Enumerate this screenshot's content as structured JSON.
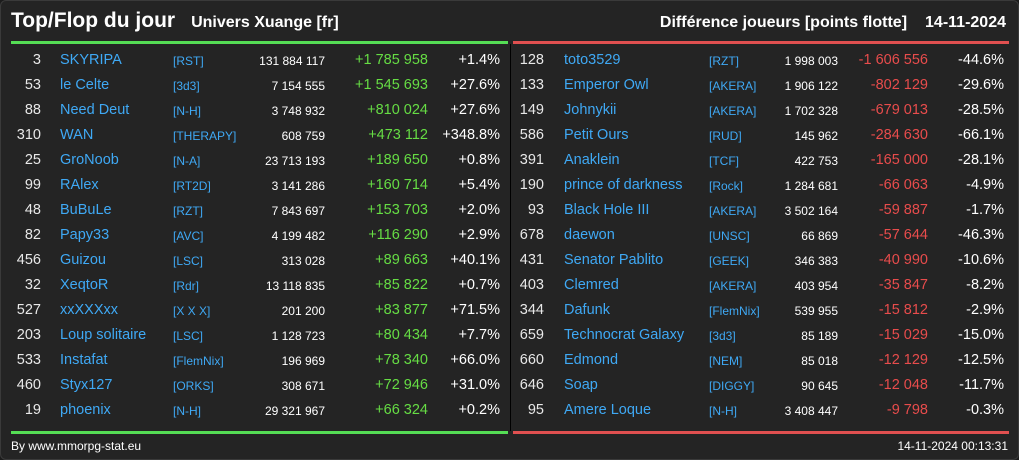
{
  "header": {
    "title": "Top/Flop du jour",
    "subtitle": "Univers Xuange [fr]",
    "metric": "Différence joueurs [points flotte]",
    "date": "14-11-2024"
  },
  "colors": {
    "top": "#55dd55",
    "flop": "#e05050",
    "name": "#3fa9f5"
  },
  "top": [
    {
      "rank": "3",
      "name": "SKYRIPA",
      "alliance": "[RST]",
      "points": "131 884 117",
      "diff": "+1 785 958",
      "pct": "+1.4%"
    },
    {
      "rank": "53",
      "name": "le Celte",
      "alliance": "[3d3]",
      "points": "7 154 555",
      "diff": "+1 545 693",
      "pct": "+27.6%"
    },
    {
      "rank": "88",
      "name": "Need Deut",
      "alliance": "[N-H]",
      "points": "3 748 932",
      "diff": "+810 024",
      "pct": "+27.6%"
    },
    {
      "rank": "310",
      "name": "WAN",
      "alliance": "[THERAPY]",
      "points": "608 759",
      "diff": "+473 112",
      "pct": "+348.8%"
    },
    {
      "rank": "25",
      "name": "GroNoob",
      "alliance": "[N-A]",
      "points": "23 713 193",
      "diff": "+189 650",
      "pct": "+0.8%"
    },
    {
      "rank": "99",
      "name": "RAlex",
      "alliance": "[RT2D]",
      "points": "3 141 286",
      "diff": "+160 714",
      "pct": "+5.4%"
    },
    {
      "rank": "48",
      "name": "BuBuLe",
      "alliance": "[RZT]",
      "points": "7 843 697",
      "diff": "+153 703",
      "pct": "+2.0%"
    },
    {
      "rank": "82",
      "name": "Papy33",
      "alliance": "[AVC]",
      "points": "4 199 482",
      "diff": "+116 290",
      "pct": "+2.9%"
    },
    {
      "rank": "456",
      "name": "Guizou",
      "alliance": "[LSC]",
      "points": "313 028",
      "diff": "+89 663",
      "pct": "+40.1%"
    },
    {
      "rank": "32",
      "name": "XeqtoR",
      "alliance": "[Rdr]",
      "points": "13 118 835",
      "diff": "+85 822",
      "pct": "+0.7%"
    },
    {
      "rank": "527",
      "name": "xxXXXxx",
      "alliance": "[X X X]",
      "points": "201 200",
      "diff": "+83 877",
      "pct": "+71.5%"
    },
    {
      "rank": "203",
      "name": "Loup solitaire",
      "alliance": "[LSC]",
      "points": "1 128 723",
      "diff": "+80 434",
      "pct": "+7.7%"
    },
    {
      "rank": "533",
      "name": "Instafat",
      "alliance": "[FlemNix]",
      "points": "196 969",
      "diff": "+78 340",
      "pct": "+66.0%"
    },
    {
      "rank": "460",
      "name": "Styx127",
      "alliance": "[ORKS]",
      "points": "308 671",
      "diff": "+72 946",
      "pct": "+31.0%"
    },
    {
      "rank": "19",
      "name": "phoenix",
      "alliance": "[N-H]",
      "points": "29 321 967",
      "diff": "+66 324",
      "pct": "+0.2%"
    }
  ],
  "flop": [
    {
      "rank": "128",
      "name": "toto3529",
      "alliance": "[RZT]",
      "points": "1 998 003",
      "diff": "-1 606 556",
      "pct": "-44.6%"
    },
    {
      "rank": "133",
      "name": "Emperor Owl",
      "alliance": "[AKERA]",
      "points": "1 906 122",
      "diff": "-802 129",
      "pct": "-29.6%"
    },
    {
      "rank": "149",
      "name": "Johnykii",
      "alliance": "[AKERA]",
      "points": "1 702 328",
      "diff": "-679 013",
      "pct": "-28.5%"
    },
    {
      "rank": "586",
      "name": "Petit Ours",
      "alliance": "[RUD]",
      "points": "145 962",
      "diff": "-284 630",
      "pct": "-66.1%"
    },
    {
      "rank": "391",
      "name": "Anaklein",
      "alliance": "[TCF]",
      "points": "422 753",
      "diff": "-165 000",
      "pct": "-28.1%"
    },
    {
      "rank": "190",
      "name": "prince of darkness",
      "alliance": "[Rock]",
      "points": "1 284 681",
      "diff": "-66 063",
      "pct": "-4.9%"
    },
    {
      "rank": "93",
      "name": "Black Hole III",
      "alliance": "[AKERA]",
      "points": "3 502 164",
      "diff": "-59 887",
      "pct": "-1.7%"
    },
    {
      "rank": "678",
      "name": "daewon",
      "alliance": "[UNSC]",
      "points": "66 869",
      "diff": "-57 644",
      "pct": "-46.3%"
    },
    {
      "rank": "431",
      "name": "Senator Pablito",
      "alliance": "[GEEK]",
      "points": "346 383",
      "diff": "-40 990",
      "pct": "-10.6%"
    },
    {
      "rank": "403",
      "name": "Clemred",
      "alliance": "[AKERA]",
      "points": "403 954",
      "diff": "-35 847",
      "pct": "-8.2%"
    },
    {
      "rank": "344",
      "name": "Dafunk",
      "alliance": "[FlemNix]",
      "points": "539 955",
      "diff": "-15 812",
      "pct": "-2.9%"
    },
    {
      "rank": "659",
      "name": "Technocrat Galaxy",
      "alliance": "[3d3]",
      "points": "85 189",
      "diff": "-15 029",
      "pct": "-15.0%"
    },
    {
      "rank": "660",
      "name": "Edmond",
      "alliance": "[NEM]",
      "points": "85 018",
      "diff": "-12 129",
      "pct": "-12.5%"
    },
    {
      "rank": "646",
      "name": "Soap",
      "alliance": "[DIGGY]",
      "points": "90 645",
      "diff": "-12 048",
      "pct": "-11.7%"
    },
    {
      "rank": "95",
      "name": "Amere Loque",
      "alliance": "[N-H]",
      "points": "3 408 447",
      "diff": "-9 798",
      "pct": "-0.3%"
    }
  ],
  "footer": {
    "credit": "By www.mmorpg-stat.eu",
    "timestamp": "14-11-2024 00:13:31"
  }
}
